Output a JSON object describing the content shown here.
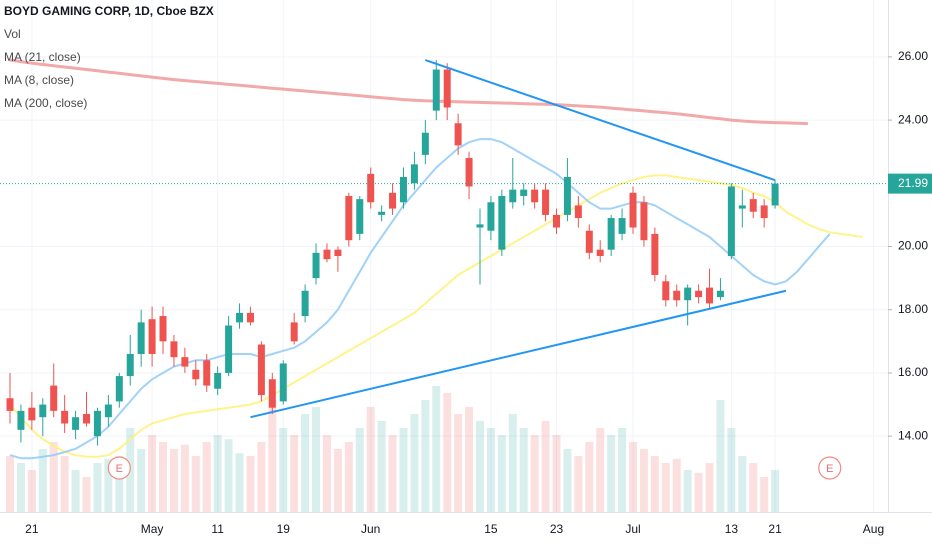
{
  "chart_data": {
    "type": "candlestick",
    "title": "BOYD GAMING CORP, 1D, Cboe BZX",
    "legend": [
      "Vol",
      "MA (21, close)",
      "MA (8, close)",
      "MA (200, close)"
    ],
    "categories": [
      null,
      null,
      "21",
      null,
      null,
      null,
      null,
      null,
      null,
      null,
      null,
      null,
      null,
      "May",
      null,
      null,
      null,
      null,
      null,
      "11",
      null,
      null,
      null,
      null,
      null,
      "19",
      null,
      null,
      null,
      null,
      null,
      null,
      null,
      "Jun",
      null,
      null,
      null,
      null,
      null,
      null,
      null,
      null,
      null,
      null,
      "15",
      null,
      null,
      null,
      null,
      null,
      "23",
      null,
      null,
      null,
      null,
      null,
      null,
      "Jul",
      null,
      null,
      null,
      null,
      null,
      null,
      null,
      null,
      "13",
      null,
      null,
      null,
      "21",
      null,
      null,
      null,
      null,
      null,
      null,
      null,
      null,
      "Aug"
    ],
    "open": [
      15.2,
      14.2,
      14.9,
      14.6,
      15.6,
      14.8,
      14.2,
      14.7,
      14.0,
      14.6,
      15.1,
      15.9,
      16.6,
      17.7,
      17.8,
      17.0,
      16.5,
      16.1,
      16.4,
      15.5,
      16.0,
      17.6,
      17.9,
      16.9,
      15.8,
      15.1,
      17.6,
      17.8,
      19.0,
      19.9,
      19.9,
      21.6,
      20.4,
      22.3,
      21.0,
      21.7,
      21.4,
      22.0,
      22.9,
      24.3,
      25.6,
      23.9,
      22.8,
      20.6,
      20.5,
      19.9,
      21.4,
      21.6,
      21.8,
      21.8,
      21.0,
      21.0,
      21.3,
      20.5,
      19.9,
      19.9,
      20.4,
      21.7,
      21.4,
      20.4,
      18.9,
      18.6,
      18.3,
      18.6,
      18.7,
      18.4,
      19.7,
      21.2,
      21.5,
      21.3,
      21.3,
      null,
      null,
      null,
      null,
      null,
      null,
      null,
      null,
      null
    ],
    "high": [
      16.0,
      15.0,
      15.4,
      15.2,
      16.3,
      15.3,
      14.8,
      15.4,
      14.9,
      15.3,
      16.0,
      17.2,
      18.0,
      18.1,
      18.1,
      17.2,
      16.8,
      16.4,
      16.6,
      16.2,
      17.8,
      18.2,
      18.1,
      17.0,
      16.0,
      16.4,
      17.9,
      18.8,
      20.1,
      20.1,
      20.0,
      21.7,
      21.6,
      22.5,
      21.3,
      22.0,
      22.5,
      23.0,
      24.0,
      25.9,
      25.8,
      24.2,
      23.0,
      21.2,
      21.6,
      21.8,
      22.8,
      22.0,
      22.0,
      22.0,
      21.2,
      22.8,
      21.6,
      20.7,
      20.2,
      21.0,
      21.2,
      21.9,
      21.6,
      20.6,
      19.1,
      18.8,
      18.8,
      18.8,
      19.3,
      19.0,
      22.0,
      21.8,
      21.7,
      21.5,
      22.1,
      null,
      null,
      null,
      null,
      null,
      null,
      null,
      null,
      null
    ],
    "low": [
      14.4,
      13.8,
      14.2,
      14.0,
      14.6,
      14.1,
      13.9,
      14.3,
      13.7,
      14.3,
      14.9,
      15.6,
      16.2,
      16.2,
      16.6,
      16.2,
      16.0,
      15.6,
      15.4,
      15.3,
      15.9,
      17.4,
      17.5,
      15.1,
      14.7,
      15.0,
      16.9,
      17.6,
      18.8,
      19.5,
      19.2,
      20.0,
      20.2,
      21.2,
      20.8,
      21.0,
      21.2,
      21.8,
      22.6,
      24.0,
      24.0,
      22.9,
      21.5,
      18.8,
      20.2,
      19.7,
      21.2,
      21.3,
      21.2,
      20.8,
      20.4,
      20.8,
      20.6,
      19.6,
      19.5,
      19.7,
      20.2,
      20.4,
      20.0,
      18.9,
      18.1,
      18.1,
      17.5,
      18.2,
      18.0,
      18.3,
      19.6,
      20.6,
      20.9,
      20.6,
      21.2,
      null,
      null,
      null,
      null,
      null,
      null,
      null,
      null,
      null
    ],
    "close": [
      14.8,
      14.8,
      14.5,
      15.0,
      14.8,
      14.4,
      14.6,
      14.4,
      14.8,
      15.0,
      15.9,
      16.6,
      17.6,
      16.6,
      17.0,
      16.5,
      16.2,
      15.8,
      15.6,
      16.0,
      17.5,
      17.9,
      17.6,
      15.3,
      14.9,
      16.3,
      17.0,
      18.6,
      19.8,
      19.6,
      19.7,
      20.2,
      21.5,
      21.4,
      21.1,
      21.2,
      22.2,
      22.6,
      23.6,
      25.6,
      24.4,
      23.2,
      21.9,
      20.7,
      21.4,
      21.6,
      21.8,
      21.8,
      21.4,
      21.0,
      20.6,
      22.2,
      20.9,
      19.8,
      19.7,
      20.9,
      20.9,
      20.6,
      20.2,
      19.1,
      18.3,
      18.3,
      18.7,
      18.4,
      18.2,
      18.6,
      21.9,
      21.3,
      21.1,
      20.9,
      21.99,
      null,
      null,
      null,
      null,
      null,
      null,
      null,
      null,
      null
    ],
    "volume": [
      40,
      35,
      30,
      45,
      50,
      40,
      30,
      25,
      35,
      38,
      40,
      60,
      45,
      55,
      50,
      45,
      48,
      40,
      50,
      55,
      52,
      42,
      40,
      50,
      80,
      60,
      55,
      70,
      75,
      55,
      45,
      50,
      60,
      75,
      65,
      55,
      60,
      70,
      80,
      90,
      85,
      70,
      75,
      65,
      60,
      55,
      70,
      60,
      55,
      65,
      55,
      45,
      40,
      50,
      60,
      55,
      60,
      50,
      45,
      40,
      35,
      38,
      30,
      28,
      35,
      80,
      60,
      40,
      35,
      25,
      30,
      null,
      null,
      null,
      null,
      null,
      null,
      null,
      null,
      null
    ],
    "volume_lim": [
      0,
      100
    ],
    "up_color": "#26a69a",
    "down_color": "#ef5350",
    "series": [
      {
        "name": "MA (21, close)",
        "color": "#fff176",
        "values": [
          15.0,
          14.6,
          14.2,
          13.9,
          13.7,
          13.5,
          13.4,
          13.35,
          13.35,
          13.4,
          13.6,
          13.9,
          14.2,
          14.4,
          14.5,
          14.6,
          14.7,
          14.75,
          14.8,
          14.85,
          14.9,
          14.95,
          15.0,
          15.1,
          15.3,
          15.5,
          15.7,
          15.9,
          16.1,
          16.3,
          16.5,
          16.7,
          16.9,
          17.1,
          17.3,
          17.5,
          17.7,
          17.9,
          18.2,
          18.5,
          18.8,
          19.1,
          19.3,
          19.5,
          19.7,
          19.9,
          20.1,
          20.3,
          20.5,
          20.7,
          20.9,
          21.1,
          21.3,
          21.5,
          21.7,
          21.85,
          22.0,
          22.1,
          22.2,
          22.25,
          22.25,
          22.2,
          22.15,
          22.1,
          22.05,
          22.0,
          21.95,
          21.85,
          21.7,
          21.6,
          21.4,
          21.1,
          20.9,
          20.7,
          20.55,
          20.45,
          20.4,
          20.35,
          20.3,
          null
        ]
      },
      {
        "name": "MA (8, close)",
        "color": "#90caf9",
        "values": [
          13.4,
          13.3,
          13.3,
          13.35,
          13.4,
          13.5,
          13.6,
          13.8,
          14.0,
          14.3,
          14.7,
          15.1,
          15.5,
          15.8,
          16.0,
          16.2,
          16.3,
          16.4,
          16.4,
          16.5,
          16.6,
          16.6,
          16.6,
          16.5,
          16.6,
          16.7,
          16.8,
          17.0,
          17.3,
          17.6,
          18.0,
          18.6,
          19.2,
          19.8,
          20.3,
          20.8,
          21.3,
          21.7,
          22.1,
          22.5,
          22.8,
          23.1,
          23.3,
          23.4,
          23.4,
          23.3,
          23.1,
          22.9,
          22.7,
          22.5,
          22.3,
          22.0,
          21.7,
          21.4,
          21.2,
          21.2,
          21.3,
          21.4,
          21.4,
          21.3,
          21.1,
          20.9,
          20.7,
          20.5,
          20.3,
          20.0,
          19.7,
          19.4,
          19.1,
          18.9,
          18.8,
          18.9,
          19.2,
          19.6,
          20.0,
          20.4,
          null,
          null,
          null,
          null
        ]
      },
      {
        "name": "MA (200, close)",
        "color": "#ef9a9a",
        "values": [
          25.9,
          25.85,
          25.8,
          25.76,
          25.72,
          25.68,
          25.64,
          25.6,
          25.56,
          25.52,
          25.48,
          25.44,
          25.4,
          25.36,
          25.32,
          25.28,
          25.25,
          25.22,
          25.19,
          25.16,
          25.13,
          25.1,
          25.07,
          25.04,
          25.01,
          24.98,
          24.95,
          24.92,
          24.89,
          24.86,
          24.83,
          24.8,
          24.77,
          24.74,
          24.71,
          24.68,
          24.65,
          24.63,
          24.61,
          24.6,
          24.59,
          24.58,
          24.57,
          24.56,
          24.55,
          24.54,
          24.53,
          24.52,
          24.51,
          24.5,
          24.49,
          24.47,
          24.45,
          24.43,
          24.41,
          24.38,
          24.35,
          24.32,
          24.29,
          24.26,
          24.23,
          24.2,
          24.16,
          24.12,
          24.08,
          24.04,
          24.0,
          23.97,
          23.95,
          23.93,
          23.92,
          23.91,
          23.9,
          23.89,
          null,
          null,
          null,
          null,
          null,
          null
        ]
      }
    ],
    "trendlines": [
      {
        "color": "#2196f3",
        "x": [
          38,
          70
        ],
        "y": [
          25.9,
          22.1
        ]
      },
      {
        "color": "#2196f3",
        "x": [
          22,
          71
        ],
        "y": [
          14.6,
          18.6
        ]
      }
    ],
    "markers": [
      {
        "index": 10,
        "label": "E"
      },
      {
        "index": 75,
        "label": "E"
      }
    ],
    "last_price": {
      "value": 21.99,
      "label": "21.99"
    },
    "ylim": [
      11.6,
      27.8
    ],
    "yticks": [
      {
        "value": 14,
        "label": "14.00"
      },
      {
        "value": 16,
        "label": "16.00"
      },
      {
        "value": 18,
        "label": "18.00"
      },
      {
        "value": 20,
        "label": "20.00"
      },
      {
        "value": 24,
        "label": "24.00"
      },
      {
        "value": 26,
        "label": "26.00"
      }
    ],
    "grid": true
  }
}
